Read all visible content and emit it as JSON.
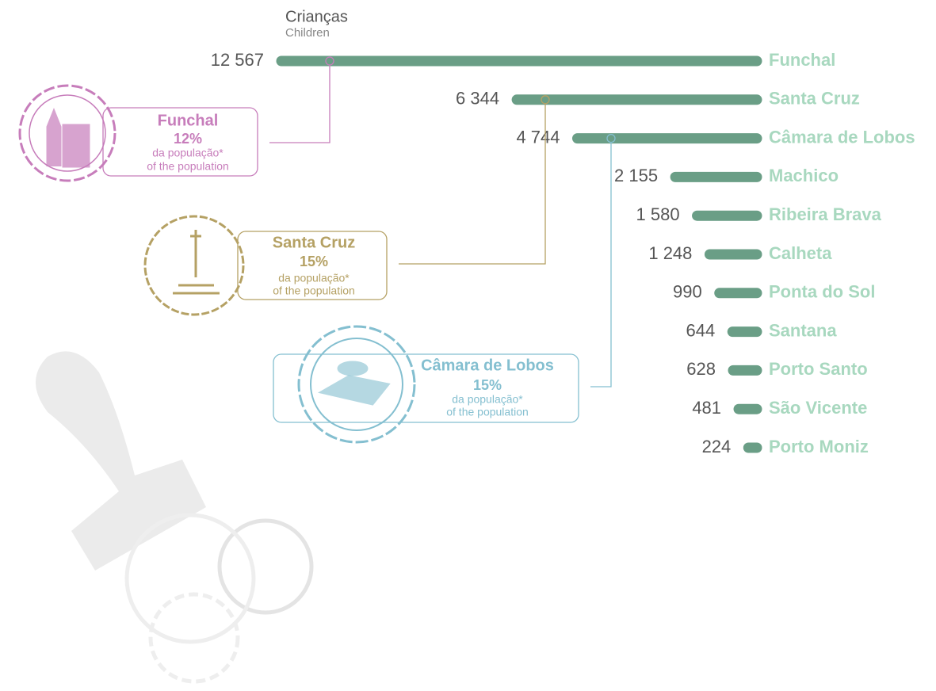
{
  "chart_data": {
    "type": "bar",
    "title": "Crianças",
    "subtitle": "Children",
    "categories": [
      "Funchal",
      "Santa Cruz",
      "Câmara de Lobos",
      "Machico",
      "Ribeira Brava",
      "Calheta",
      "Ponta do Sol",
      "Santana",
      "Porto Santo",
      "São Vicente",
      "Porto Moniz"
    ],
    "values": [
      12567,
      6344,
      4744,
      2155,
      1580,
      1248,
      990,
      644,
      628,
      481,
      224
    ],
    "value_labels": [
      "12 567",
      "6 344",
      "4 744",
      "2 155",
      "1 580",
      "1 248",
      "990",
      "644",
      "628",
      "481",
      "224"
    ],
    "color": "#6a9e86",
    "label_color": "#a8d8bf",
    "callouts": [
      {
        "name": "Funchal",
        "share": "12%",
        "line1": "da população*",
        "line2": "of the population",
        "color": "#c77dbb"
      },
      {
        "name": "Santa Cruz",
        "share": "15%",
        "line1": "da população*",
        "line2": "of the population",
        "color": "#b5a164"
      },
      {
        "name": "Câmara de Lobos",
        "share": "15%",
        "line1": "da população*",
        "line2": "of the population",
        "color": "#84bfd0"
      }
    ]
  }
}
